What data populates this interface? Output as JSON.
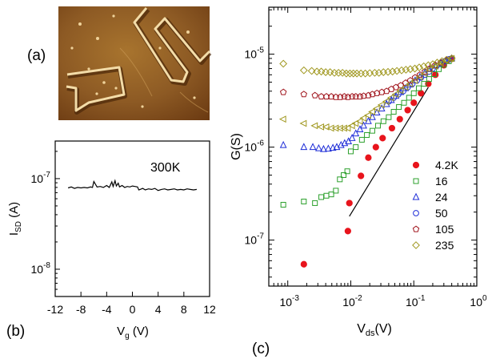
{
  "panel_labels": {
    "a": "(a)",
    "b": "(b)",
    "c": "(c)"
  },
  "afm_image": {
    "colors": [
      "#6b3a12",
      "#8d5a24",
      "#a8742e",
      "#c79a52",
      "#e9cf98"
    ]
  },
  "chart_data": [
    {
      "panel": "(b)",
      "type": "line",
      "annotation": "300K",
      "xlabel": "V",
      "xlabel_sub": "g",
      "xlabel_unit": " (V)",
      "ylabel": "I",
      "ylabel_sub": "SD",
      "ylabel_unit": " (A)",
      "xlim": [
        -12,
        12
      ],
      "ylim": [
        5e-09,
        2.6e-07
      ],
      "yscale": "log",
      "x_ticks": [
        -12,
        -8,
        -4,
        0,
        4,
        8,
        12
      ],
      "x_tick_labels": [
        "-12",
        "-8",
        "-4",
        "0",
        "4",
        "8",
        "12"
      ],
      "y_ticks": [
        1e-08,
        1e-07
      ],
      "y_tick_labels": [
        {
          "base": "10",
          "exp": "-8"
        },
        {
          "base": "10",
          "exp": "-7"
        }
      ],
      "series": [
        {
          "color": "#000000",
          "x": [
            -10,
            -9.5,
            -9,
            -8.5,
            -8,
            -7.5,
            -7,
            -6.5,
            -6.2,
            -6,
            -5.5,
            -5,
            -4.5,
            -4,
            -3.6,
            -3.2,
            -3,
            -2.7,
            -2.5,
            -2.2,
            -2,
            -1.6,
            -1.2,
            -0.8,
            -0.4,
            0,
            0.4,
            0.8,
            1,
            1.2,
            1.6,
            2,
            2.5,
            3,
            3.5,
            4,
            4.5,
            5,
            5.5,
            6,
            6.5,
            7,
            7.5,
            8,
            8.5,
            9,
            9.5,
            10
          ],
          "y": [
            7.9e-08,
            8.1e-08,
            7.8e-08,
            8e-08,
            7.9e-08,
            8e-08,
            7.9e-08,
            8.1e-08,
            8e-08,
            9.3e-08,
            8.1e-08,
            8.2e-08,
            8e-08,
            8.4e-08,
            8e-08,
            9.2e-08,
            8.2e-08,
            9.5e-08,
            8.3e-08,
            8.9e-08,
            8.1e-08,
            8.4e-08,
            8e-08,
            8.2e-08,
            8.1e-08,
            8.3e-08,
            8.2e-08,
            8.1e-08,
            7.5e-08,
            7.6e-08,
            7.8e-08,
            7.5e-08,
            7.7e-08,
            7.6e-08,
            7.8e-08,
            7.4e-08,
            7.6e-08,
            7.7e-08,
            7.5e-08,
            7.6e-08,
            7.7e-08,
            7.5e-08,
            7.6e-08,
            7.5e-08,
            7.7e-08,
            7.6e-08,
            7.5e-08,
            7.6e-08
          ]
        }
      ]
    },
    {
      "panel": "(c)",
      "type": "scatter",
      "xlabel": "V",
      "xlabel_sub": "ds",
      "xlabel_unit": "(V)",
      "ylabel": "G(S)",
      "xscale": "log",
      "yscale": "log",
      "xlim": [
        0.0005,
        1
      ],
      "ylim": [
        3.2e-08,
        3.2e-05
      ],
      "x_ticks": [
        0.001,
        0.01,
        0.1,
        1
      ],
      "x_tick_labels": [
        {
          "base": "10",
          "exp": "-3"
        },
        {
          "base": "10",
          "exp": "-2"
        },
        {
          "base": "10",
          "exp": "-1"
        },
        {
          "base": "10",
          "exp": "0"
        }
      ],
      "y_ticks": [
        1e-07,
        1e-06,
        1e-05
      ],
      "y_tick_labels": [
        {
          "base": "10",
          "exp": "-7"
        },
        {
          "base": "10",
          "exp": "-6"
        },
        {
          "base": "10",
          "exp": "-5"
        }
      ],
      "legend_position": "bottom-right",
      "reference_line": {
        "x": [
          0.0095,
          0.17
        ],
        "y": [
          1.8e-07,
          4.4e-06
        ],
        "color": "#000000"
      },
      "series": [
        {
          "name": "4.2K",
          "marker": "filled-circle",
          "color": "#e8141c",
          "x": [
            0.0018,
            0.009,
            0.0095,
            0.0145,
            0.019,
            0.025,
            0.032,
            0.045,
            0.06,
            0.08,
            0.1,
            0.13,
            0.17,
            0.22,
            0.3,
            0.4
          ],
          "y": [
            5.5e-08,
            1.25e-07,
            2.5e-07,
            4.9e-07,
            7.7e-07,
            1e-06,
            1.25e-06,
            1.6e-06,
            2e-06,
            2.5e-06,
            3e-06,
            3.8e-06,
            4.8e-06,
            6e-06,
            7.6e-06,
            8.9e-06
          ]
        },
        {
          "name": "16",
          "marker": "open-square",
          "color": "#2ca02c",
          "x": [
            0.00085,
            0.0018,
            0.0027,
            0.0034,
            0.0041,
            0.0049,
            0.0058,
            0.0067,
            0.0077,
            0.0088,
            0.01,
            0.012,
            0.015,
            0.018,
            0.022,
            0.027,
            0.033,
            0.04,
            0.048,
            0.058,
            0.07,
            0.084,
            0.1,
            0.12,
            0.145,
            0.175,
            0.21,
            0.25,
            0.3,
            0.36,
            0.4
          ],
          "y": [
            2.4e-07,
            2.6e-07,
            2.5e-07,
            2.9e-07,
            3e-07,
            3.1e-07,
            3.4e-07,
            4.5e-07,
            5e-07,
            5.5e-07,
            9e-07,
            1e-06,
            1.2e-06,
            1.35e-06,
            1.5e-06,
            1.7e-06,
            1.9e-06,
            2.1e-06,
            2.4e-06,
            2.7e-06,
            3e-06,
            3.4e-06,
            3.8e-06,
            4.3e-06,
            4.8e-06,
            5.4e-06,
            6.1e-06,
            6.9e-06,
            7.7e-06,
            8.4e-06,
            8.9e-06
          ]
        },
        {
          "name": "24",
          "marker": "open-triangle",
          "color": "#1f2ed8",
          "x": [
            0.00085,
            0.0018,
            0.0025,
            0.0031,
            0.0037,
            0.0044,
            0.0052,
            0.006,
            0.007,
            0.008,
            0.0092,
            0.0105,
            0.012,
            0.014,
            0.016,
            0.019,
            0.022,
            0.026,
            0.031,
            0.037,
            0.044,
            0.052,
            0.062,
            0.074,
            0.088,
            0.105,
            0.125,
            0.15,
            0.18,
            0.22,
            0.27,
            0.33,
            0.4
          ],
          "y": [
            1.05e-06,
            1e-06,
            1e-06,
            9.7e-07,
            9.5e-07,
            9.6e-07,
            9.8e-07,
            1e-06,
            1.05e-06,
            1.1e-06,
            1.15e-06,
            1.25e-06,
            1.4e-06,
            1.55e-06,
            1.7e-06,
            1.9e-06,
            2.1e-06,
            2.35e-06,
            2.6e-06,
            2.9e-06,
            3.2e-06,
            3.55e-06,
            3.9e-06,
            4.3e-06,
            4.7e-06,
            5.2e-06,
            5.7e-06,
            6.3e-06,
            6.9e-06,
            7.5e-06,
            8.1e-06,
            8.6e-06,
            9e-06
          ]
        },
        {
          "name": "50",
          "marker": "open-circle",
          "color": "#1f2ed8",
          "x": [
            0.04,
            0.048,
            0.057,
            0.068,
            0.08,
            0.095,
            0.112,
            0.13,
            0.15,
            0.175,
            0.2,
            0.23,
            0.27,
            0.31,
            0.36,
            0.4
          ],
          "y": [
            3.1e-06,
            3.4e-06,
            3.7e-06,
            4e-06,
            4.4e-06,
            4.8e-06,
            5.2e-06,
            5.6e-06,
            6e-06,
            6.5e-06,
            7e-06,
            7.5e-06,
            8e-06,
            8.4e-06,
            8.8e-06,
            9e-06
          ]
        },
        {
          "name": "105",
          "marker": "open-pentagon",
          "color": "#a0141c",
          "x": [
            0.00085,
            0.0018,
            0.0027,
            0.0034,
            0.0041,
            0.0049,
            0.0058,
            0.0068,
            0.0079,
            0.009,
            0.0105,
            0.012,
            0.014,
            0.016,
            0.019,
            0.022,
            0.026,
            0.031,
            0.037,
            0.044,
            0.052,
            0.062,
            0.074,
            0.088,
            0.105,
            0.125,
            0.15,
            0.18,
            0.22,
            0.27,
            0.33,
            0.4
          ],
          "y": [
            3.9e-06,
            3.7e-06,
            3.6e-06,
            3.5e-06,
            3.5e-06,
            3.5e-06,
            3.45e-06,
            3.45e-06,
            3.5e-06,
            3.45e-06,
            3.5e-06,
            3.5e-06,
            3.5e-06,
            3.55e-06,
            3.6e-06,
            3.7e-06,
            3.8e-06,
            3.9e-06,
            4e-06,
            4.2e-06,
            4.4e-06,
            4.6e-06,
            4.9e-06,
            5.2e-06,
            5.6e-06,
            6e-06,
            6.5e-06,
            7e-06,
            7.6e-06,
            8.1e-06,
            8.6e-06,
            9e-06
          ]
        },
        {
          "name": "235",
          "marker": "open-diamond",
          "color": "#a09820",
          "x": [
            0.00085,
            0.0018,
            0.0024,
            0.0029,
            0.0034,
            0.004,
            0.0047,
            0.0055,
            0.0064,
            0.0074,
            0.0085,
            0.0097,
            0.011,
            0.0125,
            0.0145,
            0.017,
            0.02,
            0.024,
            0.028,
            0.033,
            0.039,
            0.046,
            0.054,
            0.064,
            0.075,
            0.088,
            0.104,
            0.122,
            0.144,
            0.17,
            0.2,
            0.235,
            0.28,
            0.33,
            0.4
          ],
          "y": [
            7.9e-06,
            6.7e-06,
            6.6e-06,
            6.5e-06,
            6.5e-06,
            6.4e-06,
            6.4e-06,
            6.3e-06,
            6.3e-06,
            6.3e-06,
            6.2e-06,
            6.2e-06,
            6.2e-06,
            6.2e-06,
            6.2e-06,
            6.2e-06,
            6.25e-06,
            6.3e-06,
            6.3e-06,
            6.4e-06,
            6.45e-06,
            6.5e-06,
            6.6e-06,
            6.7e-06,
            6.8e-06,
            6.9e-06,
            7e-06,
            7.2e-06,
            7.4e-06,
            7.6e-06,
            7.8e-06,
            8.1e-06,
            8.4e-06,
            8.7e-06,
            9e-06
          ]
        },
        {
          "name": "",
          "marker": "open-triangle-left",
          "color": "#a09820",
          "x": [
            0.00085,
            0.0018,
            0.0027,
            0.0034,
            0.0041,
            0.0049,
            0.0058,
            0.0068,
            0.0079,
            0.009,
            0.0105,
            0.012,
            0.014,
            0.016,
            0.019,
            0.022,
            0.026,
            0.031,
            0.037,
            0.044,
            0.052,
            0.062,
            0.074,
            0.088,
            0.105,
            0.125,
            0.15,
            0.18,
            0.22,
            0.27,
            0.33,
            0.4
          ],
          "y": [
            2e-06,
            1.8e-06,
            1.7e-06,
            1.65e-06,
            1.65e-06,
            1.6e-06,
            1.6e-06,
            1.6e-06,
            1.6e-06,
            1.6e-06,
            1.7e-06,
            1.8e-06,
            1.9e-06,
            2.05e-06,
            2.2e-06,
            2.4e-06,
            2.6e-06,
            2.85e-06,
            3.1e-06,
            3.4e-06,
            3.7e-06,
            4.05e-06,
            4.4e-06,
            4.8e-06,
            5.2e-06,
            5.7e-06,
            6.2e-06,
            6.8e-06,
            7.4e-06,
            8e-06,
            8.5e-06,
            9e-06
          ]
        }
      ]
    }
  ]
}
